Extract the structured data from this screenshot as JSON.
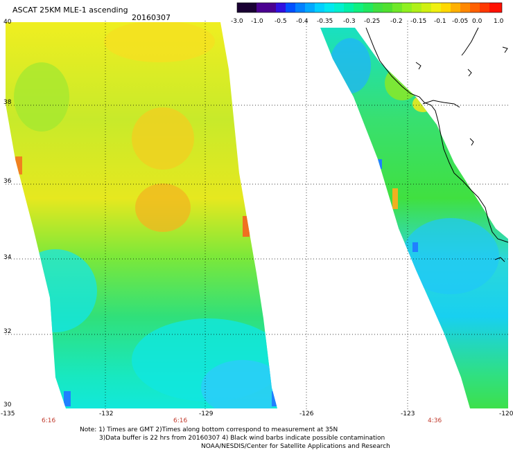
{
  "header": {
    "title": "ASCAT 25KM MLE-1 ascending",
    "date": "20160307"
  },
  "colorbar": {
    "ticks": [
      "-3.0",
      "-1.0",
      "-0.5",
      "-0.4",
      "-0.35",
      "-0.3",
      "-0.25",
      "-0.2",
      "-0.15",
      "-0.1",
      "-0.05",
      "0.0",
      "1.0"
    ],
    "colors": [
      "#1a0033",
      "#3a0070",
      "#5a00b0",
      "#3010e0",
      "#0050ff",
      "#0090ff",
      "#00d0ff",
      "#00f0d0",
      "#10f080",
      "#40e040",
      "#90f020",
      "#f0f010",
      "#ffb000",
      "#ff5000",
      "#ff1000"
    ]
  },
  "axes": {
    "y_ticks": [
      "40",
      "38",
      "36",
      "34",
      "32",
      "30"
    ],
    "x_ticks": [
      "-135",
      "-132",
      "-129",
      "-126",
      "-123",
      "-120"
    ]
  },
  "times": [
    "6:16",
    "6:16",
    "4:36"
  ],
  "notes": {
    "line1": "Note: 1) Times are GMT 2)Times along bottom correspond to measurement at 35N",
    "line2": "3)Data buffer is 22 hrs from 20160307 4) Black wind barbs indicate possible contamination",
    "line3": "NOAA/NESDIS/Center for Satellite Applications and Research"
  }
}
